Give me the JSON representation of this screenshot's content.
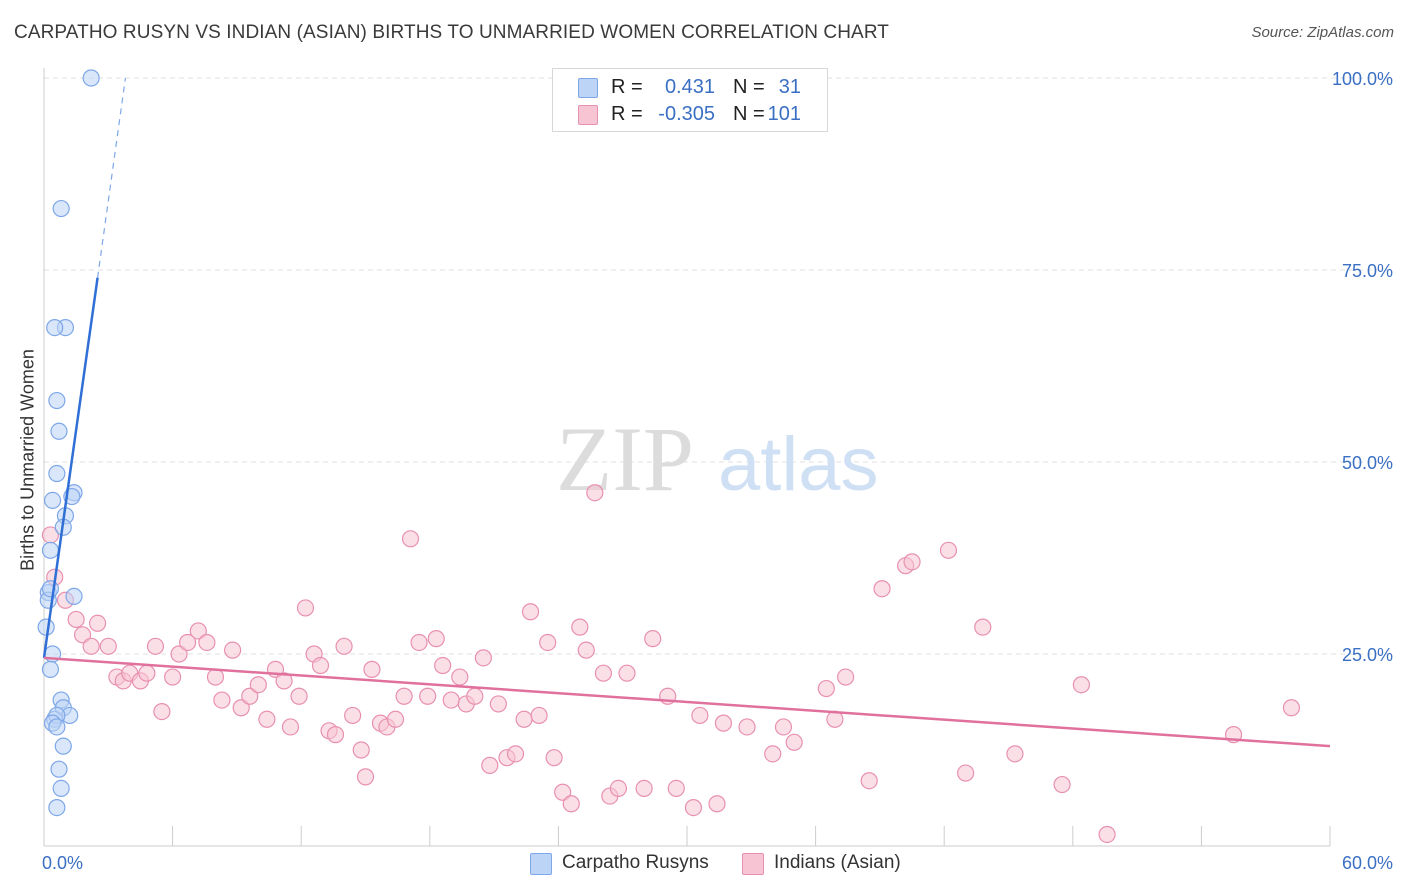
{
  "title": "CARPATHO RUSYN VS INDIAN (ASIAN) BIRTHS TO UNMARRIED WOMEN CORRELATION CHART",
  "source": "Source: ZipAtlas.com",
  "watermark": {
    "zip": "ZIP",
    "atlas": "atlas"
  },
  "legend": {
    "r_label": "R =",
    "n_label": "N =",
    "series": [
      {
        "r": "0.431",
        "n": "31"
      },
      {
        "r": "-0.305",
        "n": "101"
      }
    ]
  },
  "chart_data": {
    "type": "scatter",
    "title": "CARPATHO RUSYN VS INDIAN (ASIAN) BIRTHS TO UNMARRIED WOMEN CORRELATION CHART",
    "xlabel": "",
    "ylabel": "Births to Unmarried Women",
    "xlim": [
      0,
      60
    ],
    "ylim": [
      0,
      100
    ],
    "x_tick_labels": [
      "0.0%",
      "60.0%"
    ],
    "y_ticks": [
      25,
      50,
      75,
      100
    ],
    "y_tick_labels": [
      "25.0%",
      "50.0%",
      "75.0%",
      "100.0%"
    ],
    "grid": true,
    "legend_position": "top-center",
    "series": [
      {
        "name": "Carpatho Rusyns",
        "color": "#7ea7e8",
        "fill": "#bcd4f5",
        "trend": {
          "x": [
            0,
            2.5
          ],
          "y": [
            24.5,
            74
          ],
          "dashed_to": [
            3.8,
            100
          ]
        },
        "points": [
          [
            2.2,
            100
          ],
          [
            0.8,
            83
          ],
          [
            1.0,
            67.5
          ],
          [
            0.5,
            67.5
          ],
          [
            0.6,
            58
          ],
          [
            0.7,
            54
          ],
          [
            0.6,
            48.5
          ],
          [
            1.4,
            46
          ],
          [
            1.3,
            45.5
          ],
          [
            0.4,
            45
          ],
          [
            1.0,
            43
          ],
          [
            0.9,
            41.5
          ],
          [
            0.3,
            38.5
          ],
          [
            0.2,
            33
          ],
          [
            1.4,
            32.5
          ],
          [
            0.2,
            32
          ],
          [
            0.1,
            28.5
          ],
          [
            0.4,
            25
          ],
          [
            0.3,
            23
          ],
          [
            0.8,
            19
          ],
          [
            0.9,
            18
          ],
          [
            1.2,
            17
          ],
          [
            0.5,
            16.5
          ],
          [
            0.6,
            17
          ],
          [
            0.4,
            16
          ],
          [
            0.6,
            15.5
          ],
          [
            0.9,
            13
          ],
          [
            0.7,
            10
          ],
          [
            0.8,
            7.5
          ],
          [
            0.6,
            5
          ],
          [
            0.3,
            33.5
          ]
        ]
      },
      {
        "name": "Indians (Asian)",
        "color": "#e890b0",
        "fill": "#f7c4d4",
        "trend": {
          "x": [
            0,
            60
          ],
          "y": [
            24.5,
            13
          ]
        },
        "points": [
          [
            0.3,
            40.5
          ],
          [
            0.5,
            35
          ],
          [
            1.0,
            32
          ],
          [
            1.5,
            29.5
          ],
          [
            2.5,
            29
          ],
          [
            1.8,
            27.5
          ],
          [
            2.2,
            26
          ],
          [
            3.0,
            26
          ],
          [
            3.4,
            22
          ],
          [
            3.7,
            21.5
          ],
          [
            4.0,
            22.5
          ],
          [
            4.5,
            21.5
          ],
          [
            4.8,
            22.5
          ],
          [
            5.2,
            26
          ],
          [
            5.5,
            17.5
          ],
          [
            6.0,
            22
          ],
          [
            6.3,
            25
          ],
          [
            6.7,
            26.5
          ],
          [
            7.2,
            28
          ],
          [
            7.6,
            26.5
          ],
          [
            8.0,
            22
          ],
          [
            8.3,
            19
          ],
          [
            8.8,
            25.5
          ],
          [
            9.2,
            18
          ],
          [
            9.6,
            19.5
          ],
          [
            10.0,
            21
          ],
          [
            10.4,
            16.5
          ],
          [
            10.8,
            23
          ],
          [
            11.2,
            21.5
          ],
          [
            11.5,
            15.5
          ],
          [
            11.9,
            19.5
          ],
          [
            12.2,
            31
          ],
          [
            12.6,
            25
          ],
          [
            12.9,
            23.5
          ],
          [
            13.3,
            15
          ],
          [
            13.6,
            14.5
          ],
          [
            14.0,
            26
          ],
          [
            14.4,
            17
          ],
          [
            14.8,
            12.5
          ],
          [
            15.0,
            9
          ],
          [
            15.3,
            23
          ],
          [
            15.7,
            16
          ],
          [
            16.0,
            15.5
          ],
          [
            16.4,
            16.5
          ],
          [
            16.8,
            19.5
          ],
          [
            17.1,
            40
          ],
          [
            17.5,
            26.5
          ],
          [
            17.9,
            19.5
          ],
          [
            18.3,
            27
          ],
          [
            18.6,
            23.5
          ],
          [
            19.0,
            19
          ],
          [
            19.4,
            22
          ],
          [
            19.7,
            18.5
          ],
          [
            20.1,
            19.5
          ],
          [
            20.5,
            24.5
          ],
          [
            20.8,
            10.5
          ],
          [
            21.2,
            18.5
          ],
          [
            21.6,
            11.5
          ],
          [
            22.0,
            12
          ],
          [
            22.4,
            16.5
          ],
          [
            22.7,
            30.5
          ],
          [
            23.1,
            17
          ],
          [
            23.5,
            26.5
          ],
          [
            23.8,
            11.5
          ],
          [
            24.2,
            7
          ],
          [
            24.6,
            5.5
          ],
          [
            25.0,
            28.5
          ],
          [
            25.3,
            25.5
          ],
          [
            25.7,
            46
          ],
          [
            26.1,
            22.5
          ],
          [
            26.4,
            6.5
          ],
          [
            26.8,
            7.5
          ],
          [
            27.2,
            22.5
          ],
          [
            28.0,
            7.5
          ],
          [
            28.4,
            27
          ],
          [
            29.1,
            19.5
          ],
          [
            29.5,
            7.5
          ],
          [
            30.3,
            5
          ],
          [
            30.6,
            17
          ],
          [
            31.4,
            5.5
          ],
          [
            31.7,
            16
          ],
          [
            32.8,
            15.5
          ],
          [
            34.0,
            12
          ],
          [
            34.5,
            15.5
          ],
          [
            35.0,
            13.5
          ],
          [
            36.5,
            20.5
          ],
          [
            36.9,
            16.5
          ],
          [
            37.4,
            22
          ],
          [
            38.5,
            8.5
          ],
          [
            39.1,
            33.5
          ],
          [
            40.2,
            36.5
          ],
          [
            40.5,
            37
          ],
          [
            42.2,
            38.5
          ],
          [
            43.0,
            9.5
          ],
          [
            43.8,
            28.5
          ],
          [
            45.3,
            12
          ],
          [
            47.5,
            8
          ],
          [
            48.4,
            21
          ],
          [
            49.6,
            1.5
          ],
          [
            55.5,
            14.5
          ],
          [
            58.2,
            18
          ]
        ]
      }
    ]
  }
}
